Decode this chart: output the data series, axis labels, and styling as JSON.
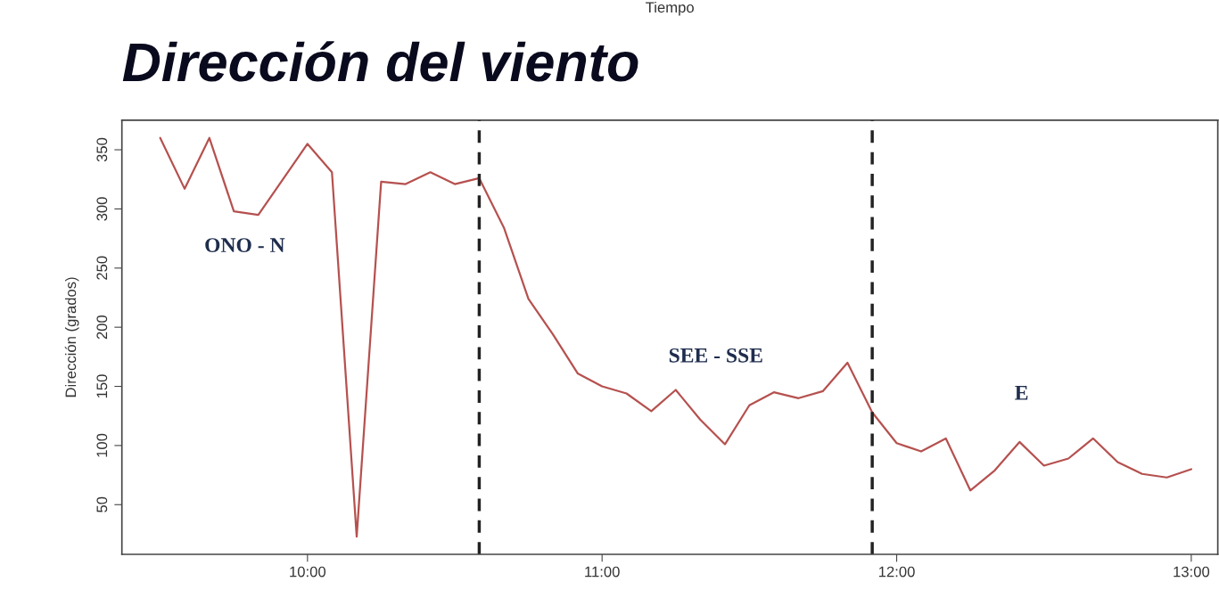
{
  "chart_data": {
    "type": "line",
    "title": "Dirección del viento",
    "ylabel": "Dirección (grados)",
    "x": [
      9.5,
      9.583,
      9.667,
      9.75,
      9.833,
      10.0,
      10.083,
      10.167,
      10.25,
      10.333,
      10.417,
      10.5,
      10.583,
      10.667,
      10.75,
      10.833,
      10.917,
      11.0,
      11.083,
      11.167,
      11.25,
      11.333,
      11.417,
      11.5,
      11.583,
      11.667,
      11.75,
      11.833,
      11.917,
      12.0,
      12.083,
      12.167,
      12.25,
      12.333,
      12.417,
      12.5,
      12.583,
      12.667,
      12.75,
      12.833,
      12.917,
      13.0
    ],
    "series": [
      {
        "color": "#b5514f",
        "values": [
          360,
          317,
          360,
          298,
          295,
          355,
          331,
          23,
          323,
          321,
          331,
          321,
          326,
          284,
          224,
          194,
          161,
          150,
          144,
          129,
          147,
          122,
          101,
          134,
          145,
          140,
          146,
          170,
          128,
          102,
          95,
          106,
          62,
          79,
          103,
          83,
          89,
          106,
          86,
          76,
          73,
          80
        ]
      }
    ],
    "xlim": [
      9.37,
      13.09
    ],
    "ylim": [
      8,
      375
    ],
    "xticks": [
      {
        "value": 10,
        "label": "10:00"
      },
      {
        "value": 11,
        "label": "11:00"
      },
      {
        "value": 12,
        "label": "12:00"
      },
      {
        "value": 13,
        "label": "13:00"
      }
    ],
    "yticks": [
      50,
      100,
      150,
      200,
      250,
      300,
      350
    ],
    "ref_lines": [
      {
        "axis": "x",
        "value": 10.583,
        "color": "#222222",
        "line_style": "dashed"
      },
      {
        "axis": "x",
        "value": 11.917,
        "color": "#222222",
        "line_style": "dashed"
      }
    ],
    "annotations": [
      "Tiempo",
      "ONO - N",
      "SEE - SSE",
      "E"
    ],
    "grid": false,
    "legend": false,
    "marker": "none",
    "line_style": "solid"
  }
}
